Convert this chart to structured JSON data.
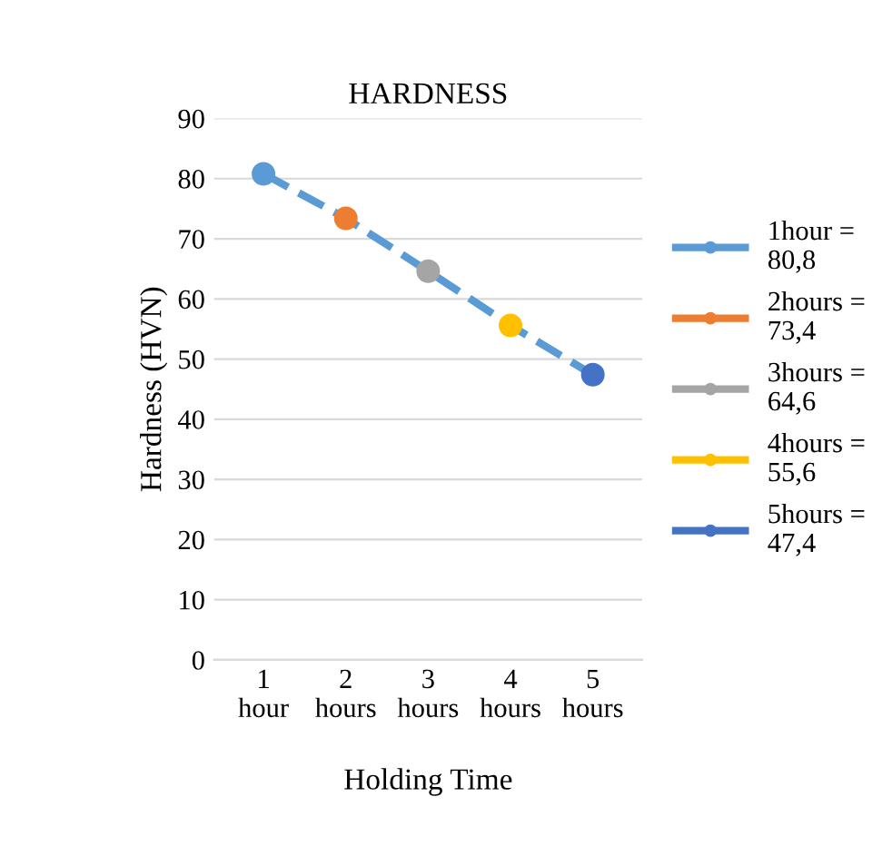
{
  "chart_data": {
    "type": "scatter",
    "title": "HARDNESS",
    "xlabel": "Holding Time",
    "ylabel": "Hardness (HVN)",
    "categories": [
      "1 hour",
      "2 hours",
      "3 hours",
      "4 hours",
      "5 hours"
    ],
    "ylim": [
      0,
      90
    ],
    "yticks": [
      0,
      10,
      20,
      30,
      40,
      50,
      60,
      70,
      80,
      90
    ],
    "grid": "y",
    "legend": "right",
    "series": [
      {
        "type": "line",
        "line_style": "dashed",
        "color": "#5b9bd5",
        "values": [
          80.8,
          73.4,
          64.6,
          55.6,
          47.4
        ]
      },
      {
        "name": "1hour = 80,8",
        "marker": "circle",
        "color": "#5b9bd5",
        "values": [
          80.8,
          null,
          null,
          null,
          null
        ]
      },
      {
        "name": "2hours = 73,4",
        "marker": "circle",
        "color": "#ed7d31",
        "values": [
          null,
          73.4,
          null,
          null,
          null
        ]
      },
      {
        "name": "3hours = 64,6",
        "marker": "circle",
        "color": "#a5a5a5",
        "values": [
          null,
          null,
          64.6,
          null,
          null
        ]
      },
      {
        "name": "4hours = 55,6",
        "marker": "circle",
        "color": "#ffc000",
        "values": [
          null,
          null,
          null,
          55.6,
          null
        ]
      },
      {
        "name": "5hours = 47,4",
        "marker": "circle",
        "color": "#4472c4",
        "values": [
          null,
          null,
          null,
          null,
          47.4
        ]
      }
    ]
  }
}
